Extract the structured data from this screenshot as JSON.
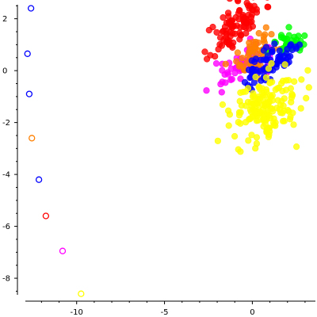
{
  "chart_data": {
    "type": "scatter",
    "title": "",
    "xlabel": "",
    "ylabel": "",
    "xlim": [
      -13.1,
      3.5
    ],
    "ylim": [
      -8.7,
      2.6
    ],
    "x_ticks": [
      -10,
      -5,
      0
    ],
    "x_tick_labels": [
      "-10",
      "-5",
      "0"
    ],
    "y_ticks": [
      2,
      0,
      -2,
      -4,
      -6,
      -8
    ],
    "y_tick_labels": [
      "2",
      "0",
      "-2",
      "-4",
      "-6",
      "-8"
    ],
    "grid": false,
    "clusters": [
      {
        "color": "#ff0000",
        "center": [
          -0.9,
          1.8
        ],
        "spread": [
          0.85,
          0.38
        ],
        "rotation": 0.55,
        "count": 95,
        "seed": 11
      },
      {
        "color": "#ff00ff",
        "center": [
          -0.6,
          0.2
        ],
        "spread": [
          0.75,
          0.3
        ],
        "rotation": 0.4,
        "count": 60,
        "seed": 22
      },
      {
        "color": "#ff8000",
        "center": [
          0.2,
          0.6
        ],
        "spread": [
          0.55,
          0.35
        ],
        "rotation": 0.6,
        "count": 55,
        "seed": 33
      },
      {
        "color": "#00ff00",
        "center": [
          2.1,
          1.0
        ],
        "spread": [
          0.5,
          0.28
        ],
        "rotation": 0.1,
        "count": 35,
        "seed": 44
      },
      {
        "color": "#0000ff",
        "center": [
          1.0,
          0.2
        ],
        "spread": [
          0.9,
          0.28
        ],
        "rotation": 0.45,
        "count": 75,
        "seed": 55
      },
      {
        "color": "#ffff00",
        "center": [
          0.8,
          -1.5
        ],
        "spread": [
          0.95,
          0.6
        ],
        "rotation": 0.35,
        "count": 170,
        "seed": 66
      }
    ],
    "legend_markers": [
      {
        "color": "#0000ff",
        "x": -12.6,
        "y": 2.4
      },
      {
        "color": "#0000ff",
        "x": -12.8,
        "y": 0.65
      },
      {
        "color": "#0000ff",
        "x": -12.7,
        "y": -0.9
      },
      {
        "color": "#ff8000",
        "x": -12.55,
        "y": -2.6
      },
      {
        "color": "#0000ff",
        "x": -12.15,
        "y": -4.2
      },
      {
        "color": "#ff0000",
        "x": -11.75,
        "y": -5.6
      },
      {
        "color": "#ff00ff",
        "x": -10.8,
        "y": -6.95
      },
      {
        "color": "#ffff00",
        "x": -9.75,
        "y": -8.6
      }
    ]
  }
}
